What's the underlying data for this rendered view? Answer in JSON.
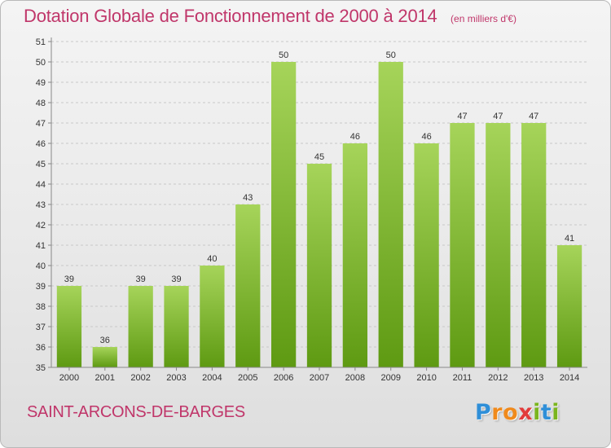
{
  "header": {
    "title": "Dotation Globale de Fonctionnement de 2000 à 2014",
    "subtitle": "(en milliers d'€)"
  },
  "footer": {
    "commune": "SAINT-ARCONS-DE-BARGES",
    "logo_letters": [
      "P",
      "r",
      "o",
      "x",
      "i",
      "t",
      "i"
    ],
    "logo_colors": [
      "#2f8fd8",
      "#f08a1c",
      "#f08a1c",
      "#e23b3b",
      "#7ab51d",
      "#2f8fd8",
      "#7ab51d"
    ]
  },
  "colors": {
    "bar_top": "#a6d45a",
    "bar_bottom": "#5e9a12",
    "grid": "#c8c8c8",
    "title": "#c0366a"
  },
  "chart_data": {
    "type": "bar",
    "categories": [
      "2000",
      "2001",
      "2002",
      "2003",
      "2004",
      "2005",
      "2006",
      "2007",
      "2008",
      "2009",
      "2010",
      "2011",
      "2012",
      "2013",
      "2014"
    ],
    "values": [
      39,
      36,
      39,
      39,
      40,
      43,
      50,
      45,
      46,
      50,
      46,
      47,
      47,
      47,
      41
    ],
    "ylim": [
      35,
      51
    ],
    "yticks": [
      35,
      36,
      37,
      38,
      39,
      40,
      41,
      42,
      43,
      44,
      45,
      46,
      47,
      48,
      49,
      50,
      51
    ],
    "grid": true,
    "legend": "none"
  }
}
